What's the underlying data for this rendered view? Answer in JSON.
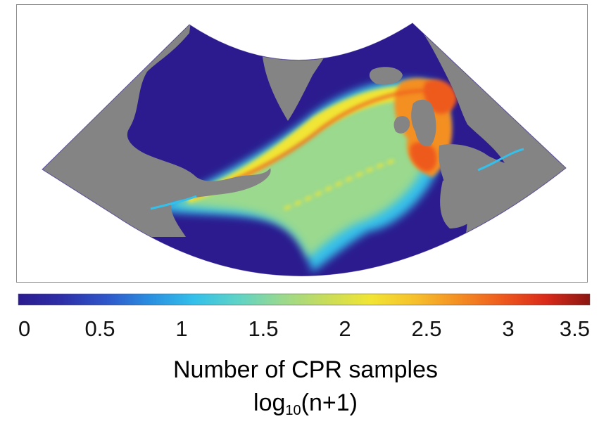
{
  "colors": {
    "background": "#ffffff",
    "land": "#848484",
    "ocean_min": "#2b1b8f",
    "colormap": [
      "#2b1b8f",
      "#2e2fa8",
      "#2f56c9",
      "#2a8fe0",
      "#34c0ea",
      "#5fd3c6",
      "#9ad98e",
      "#c8dc5a",
      "#f1e534",
      "#f6c12c",
      "#f48f24",
      "#ee5a1e",
      "#d92a1a",
      "#8a1712"
    ]
  },
  "colorbar": {
    "min": 0,
    "max": 3.5,
    "ticks": [
      {
        "value": 0,
        "label": "0"
      },
      {
        "value": 0.5,
        "label": "0.5"
      },
      {
        "value": 1,
        "label": "1"
      },
      {
        "value": 1.5,
        "label": "1.5"
      },
      {
        "value": 2,
        "label": "2"
      },
      {
        "value": 2.5,
        "label": "2.5"
      },
      {
        "value": 3,
        "label": "3"
      },
      {
        "value": 3.5,
        "label": "3.5"
      }
    ]
  },
  "caption": {
    "line1": "Number of CPR samples",
    "log_base_text": "log",
    "log_subscript": "10",
    "log_argument": "(n+1)"
  }
}
